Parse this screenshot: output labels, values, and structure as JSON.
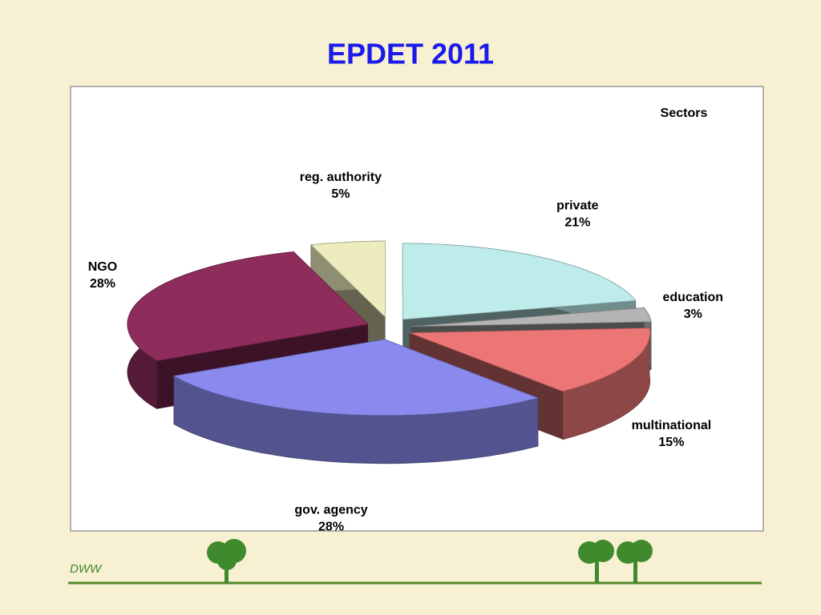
{
  "chart_data": {
    "type": "pie",
    "title": "EPDET 2011",
    "legend_title": "Sectors",
    "categories": [
      "private",
      "education",
      "multinational",
      "gov. agency",
      "NGO",
      "reg. authority"
    ],
    "values": [
      21,
      3,
      15,
      28,
      28,
      5
    ],
    "value_labels": [
      "21%",
      "3%",
      "15%",
      "28%",
      "28%",
      "5%"
    ],
    "colors": [
      "#bdeceb",
      "#b4b4b4",
      "#ec7676",
      "#8a8aee",
      "#8e2c5c",
      "#ececbe"
    ],
    "three_d": true,
    "exploded": true
  },
  "footer": "DWW"
}
